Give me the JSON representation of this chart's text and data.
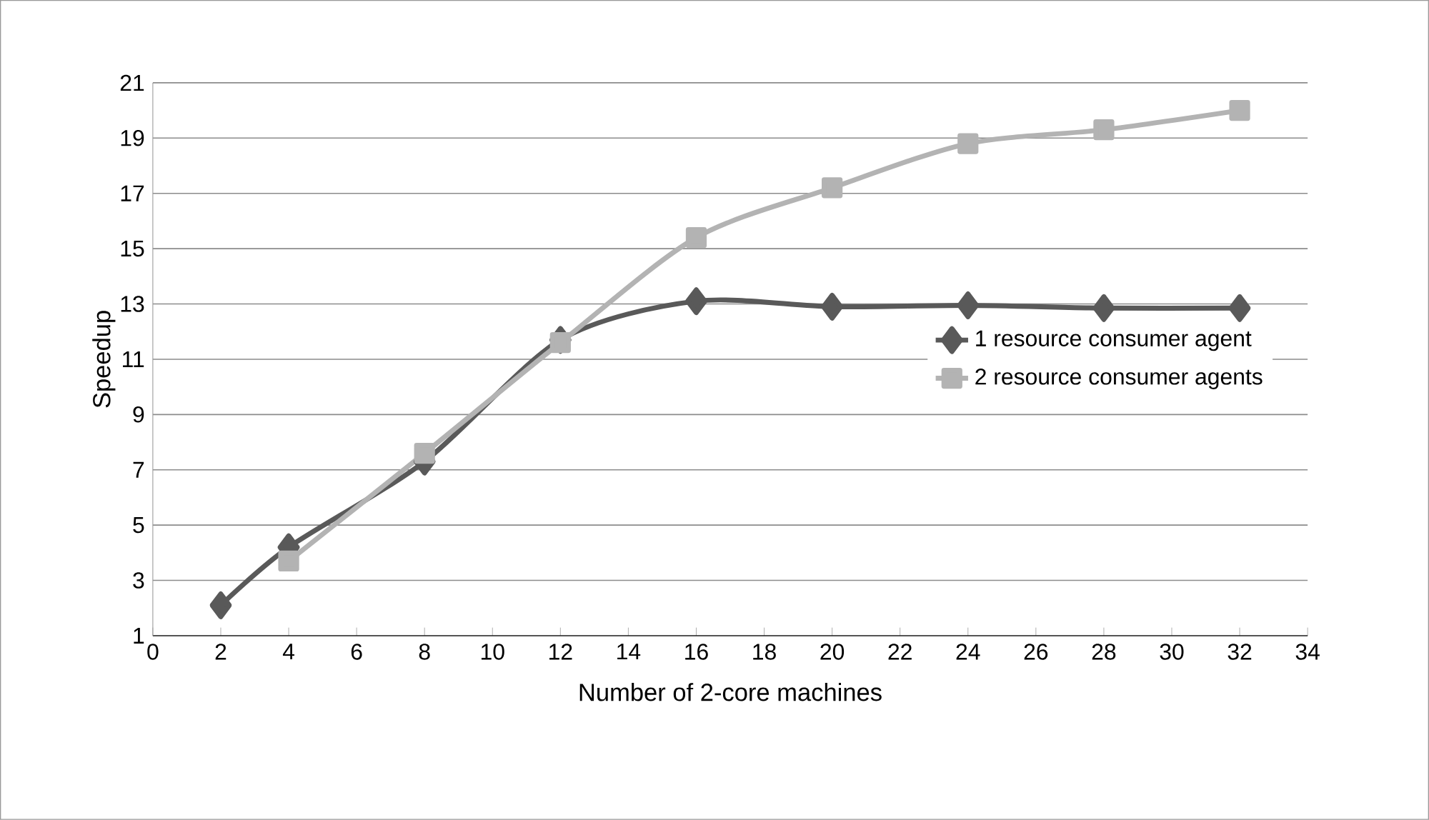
{
  "chart_data": {
    "type": "line",
    "xlabel": "Number of 2-core machines",
    "ylabel": "Speedup",
    "xlim": [
      0,
      34
    ],
    "xticks": [
      0,
      2,
      4,
      6,
      8,
      10,
      12,
      14,
      16,
      18,
      20,
      22,
      24,
      26,
      28,
      30,
      32,
      34
    ],
    "ylim": [
      1,
      21
    ],
    "yticks": [
      1,
      3,
      5,
      7,
      9,
      11,
      13,
      15,
      17,
      19,
      21
    ],
    "grid": "y",
    "legend": "right",
    "line_style": "solid",
    "series": [
      {
        "name": "1 resource consumer agent",
        "color": "#595959",
        "marker": "diamond",
        "x": [
          2,
          4,
          8,
          12,
          16,
          20,
          24,
          28,
          32
        ],
        "values": [
          2.1,
          4.2,
          7.3,
          11.7,
          13.1,
          12.9,
          12.95,
          12.85,
          12.85
        ]
      },
      {
        "name": "2 resource consumer agents",
        "color": "#b3b3b3",
        "marker": "square",
        "x": [
          4,
          8,
          12,
          16,
          20,
          24,
          28,
          32
        ],
        "values": [
          3.7,
          7.6,
          11.6,
          15.4,
          17.2,
          18.8,
          19.3,
          20.0
        ]
      }
    ]
  }
}
